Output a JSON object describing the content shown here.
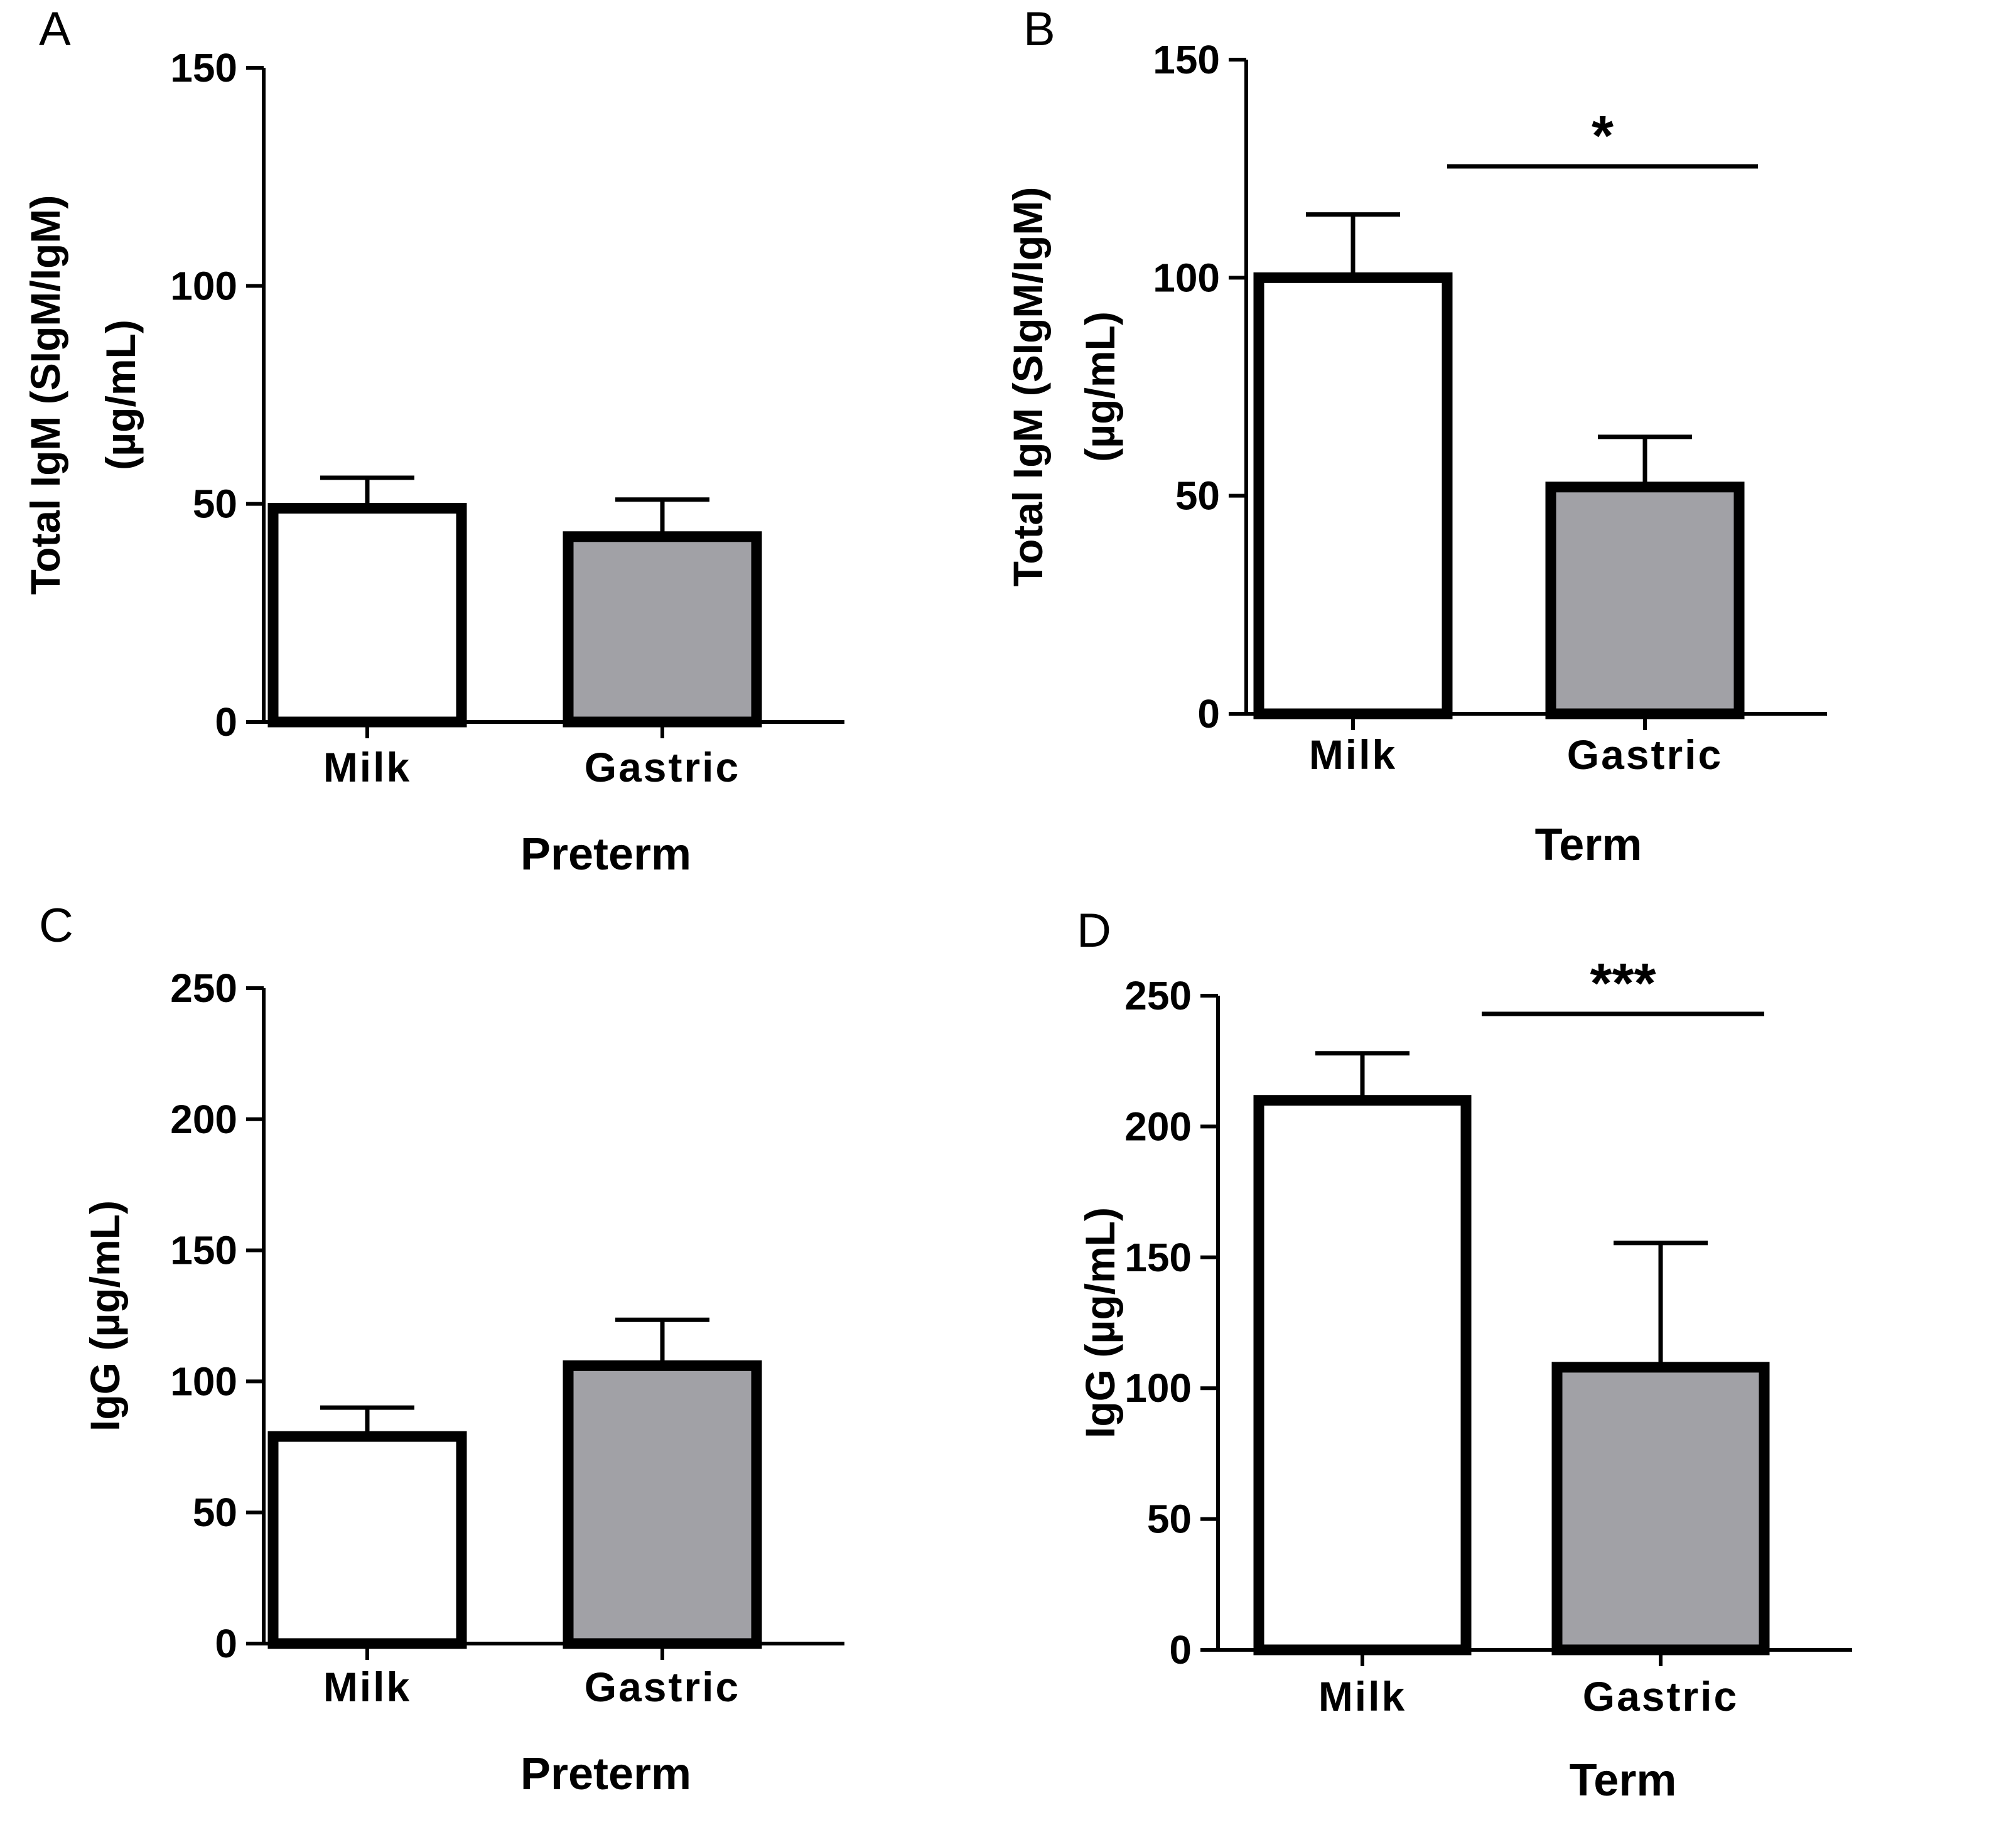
{
  "chart_data": [
    {
      "panel": "A",
      "type": "bar",
      "categories": [
        "Milk",
        "Gastric"
      ],
      "values": [
        49,
        42.5
      ],
      "errors": [
        7,
        8.5
      ],
      "colors": [
        "#ffffff",
        "#a1a1a6"
      ],
      "ylabel_lines": [
        "Total IgM (SIgM/IgM)",
        "(µg/mL)"
      ],
      "xlabel": "Preterm",
      "ylim": [
        0,
        150
      ],
      "yticks": [
        0,
        50,
        100,
        150
      ],
      "significance": null
    },
    {
      "panel": "B",
      "type": "bar",
      "categories": [
        "Milk",
        "Gastric"
      ],
      "values": [
        100,
        52
      ],
      "errors": [
        14.5,
        11.5
      ],
      "colors": [
        "#ffffff",
        "#a1a1a6"
      ],
      "ylabel_lines": [
        "Total IgM (SIgM/IgM)",
        "(µg/mL)"
      ],
      "xlabel": "Term",
      "ylim": [
        0,
        150
      ],
      "yticks": [
        0,
        50,
        100,
        150
      ],
      "significance": "*"
    },
    {
      "panel": "C",
      "type": "bar",
      "categories": [
        "Milk",
        "Gastric"
      ],
      "values": [
        79,
        106
      ],
      "errors": [
        11,
        17.5
      ],
      "colors": [
        "#ffffff",
        "#a1a1a6"
      ],
      "ylabel_lines": [
        "IgG (µg/mL)"
      ],
      "xlabel": "Preterm",
      "ylim": [
        0,
        250
      ],
      "yticks": [
        0,
        50,
        100,
        150,
        200,
        250
      ],
      "significance": null
    },
    {
      "panel": "D",
      "type": "bar",
      "categories": [
        "Milk",
        "Gastric"
      ],
      "values": [
        210,
        108
      ],
      "errors": [
        18,
        47.5
      ],
      "colors": [
        "#ffffff",
        "#a1a1a6"
      ],
      "ylabel_lines": [
        "IgG (µg/mL)"
      ],
      "xlabel": "Term",
      "ylim": [
        0,
        250
      ],
      "yticks": [
        0,
        50,
        100,
        150,
        200,
        250
      ],
      "significance": "***"
    }
  ]
}
